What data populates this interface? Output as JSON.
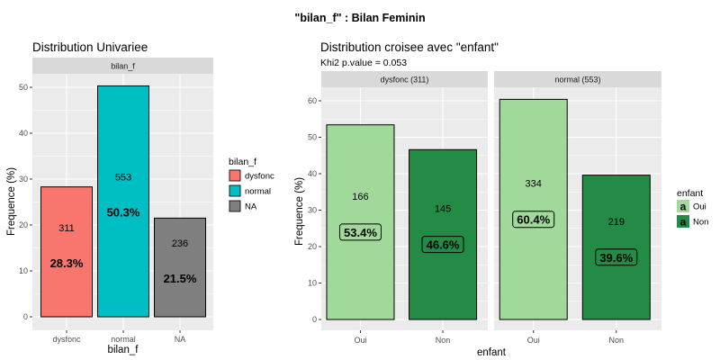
{
  "figure": {
    "title": "\"bilan_f\" : Bilan Feminin"
  },
  "colors": {
    "panel_bg": "#ebebeb",
    "strip_bg": "#d9d9d9",
    "grid": "#ffffff",
    "dysfonc": "#f8766d",
    "normal": "#00bfc4",
    "na": "#7f7f7f",
    "oui": "#a1d99b",
    "non": "#238b45"
  },
  "chart_data": [
    {
      "type": "bar",
      "title": "Distribution Univariee",
      "facet_label": "bilan_f",
      "xlabel": "bilan_f",
      "ylabel": "Frequence (%)",
      "ylim": [
        0,
        52
      ],
      "yticks": [
        0,
        10,
        20,
        30,
        40,
        50
      ],
      "grid": true,
      "categories": [
        "dysfonc",
        "normal",
        "NA"
      ],
      "values": [
        28.3,
        50.3,
        21.5
      ],
      "counts": [
        "311",
        "553",
        "236"
      ],
      "pct_labels": [
        "28.3%",
        "50.3%",
        "21.5%"
      ],
      "legend": {
        "title": "bilan_f",
        "position": "right",
        "entries": [
          "dysfonc",
          "normal",
          "NA"
        ]
      }
    },
    {
      "type": "bar",
      "title": "Distribution croisee avec \"enfant\"",
      "subtitle": "Khi2 p.value = 0.053",
      "xlabel": "enfant",
      "ylabel": "Frequence (%)",
      "ylim": [
        0,
        64
      ],
      "yticks": [
        0,
        10,
        20,
        30,
        40,
        50,
        60
      ],
      "grid": true,
      "facets": [
        {
          "label": "dysfonc (311)",
          "categories": [
            "Oui",
            "Non"
          ],
          "values": [
            53.4,
            46.6
          ],
          "counts": [
            "166",
            "145"
          ],
          "pct_labels": [
            "53.4%",
            "46.6%"
          ]
        },
        {
          "label": "normal (553)",
          "categories": [
            "Oui",
            "Non"
          ],
          "values": [
            60.4,
            39.6
          ],
          "counts": [
            "334",
            "219"
          ],
          "pct_labels": [
            "60.4%",
            "39.6%"
          ]
        }
      ],
      "legend": {
        "title": "enfant",
        "position": "right",
        "key_glyph": "a",
        "entries": [
          "Oui",
          "Non"
        ]
      }
    }
  ]
}
